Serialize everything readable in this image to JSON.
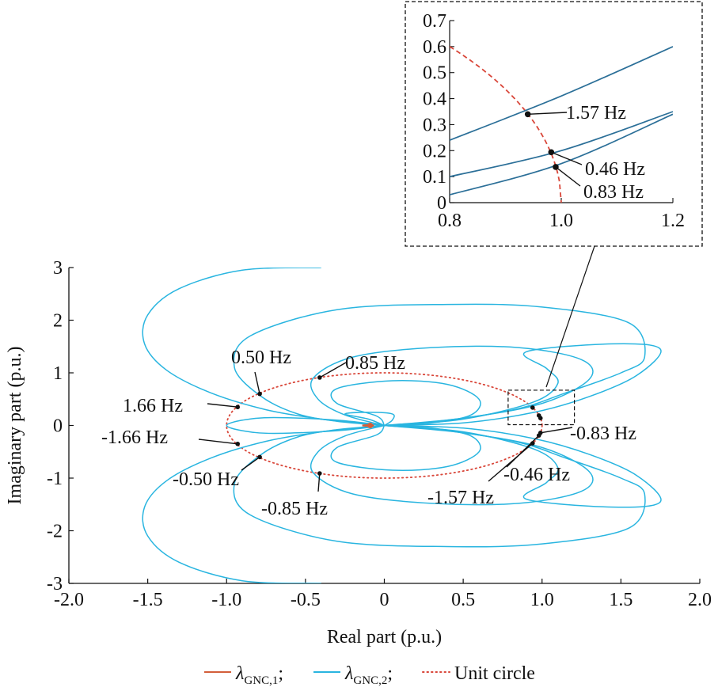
{
  "chart_data": [
    {
      "id": "main",
      "type": "line",
      "xlabel": "Real part (p.u.)",
      "ylabel": "Imaginary part (p.u.)",
      "xlim": [
        -2.0,
        2.0
      ],
      "ylim": [
        -3,
        3
      ],
      "xticks": [
        "-2.0",
        "-1.5",
        "-1.0",
        "-0.5",
        "0",
        "0.5",
        "1.0",
        "1.5",
        "2.0"
      ],
      "yticks": [
        "3",
        "2",
        "1",
        "0",
        "-1",
        "-2",
        "-3"
      ],
      "grid": false,
      "legend_position": "bottom",
      "series": [
        {
          "name": "λGNC,1",
          "color": "#d35f3a",
          "style": "solid",
          "points": [
            [
              -0.14,
              0.0
            ],
            [
              -0.1,
              0.01
            ],
            [
              -0.07,
              0.0
            ],
            [
              -0.1,
              -0.01
            ],
            [
              -0.14,
              0.0
            ]
          ]
        },
        {
          "name": "λGNC,2",
          "color": "#29b5e0",
          "style": "solid",
          "branches": [
            [
              [
                -0.4,
                3.0
              ],
              [
                -0.9,
                2.95
              ],
              [
                -1.3,
                2.6
              ],
              [
                -1.5,
                2.1
              ],
              [
                -1.52,
                1.55
              ],
              [
                -1.38,
                1.05
              ],
              [
                -1.1,
                0.62
              ],
              [
                -0.75,
                0.3
              ],
              [
                -0.4,
                0.12
              ],
              [
                -0.1,
                0.03
              ],
              [
                0.0,
                0.0
              ]
            ],
            [
              [
                -0.4,
                -3.0
              ],
              [
                -0.9,
                -2.95
              ],
              [
                -1.3,
                -2.6
              ],
              [
                -1.5,
                -2.1
              ],
              [
                -1.52,
                -1.55
              ],
              [
                -1.38,
                -1.05
              ],
              [
                -1.1,
                -0.62
              ],
              [
                -0.75,
                -0.3
              ],
              [
                -0.4,
                -0.12
              ],
              [
                -0.1,
                -0.03
              ],
              [
                0.0,
                0.0
              ]
            ],
            [
              [
                0.0,
                0.0
              ],
              [
                0.4,
                0.1
              ],
              [
                0.85,
                0.32
              ],
              [
                1.15,
                0.62
              ],
              [
                1.5,
                1.0
              ],
              [
                1.65,
                1.3
              ],
              [
                1.55,
                1.95
              ],
              [
                1.0,
                2.25
              ],
              [
                0.4,
                2.3
              ],
              [
                -0.3,
                2.2
              ],
              [
                -0.85,
                1.7
              ],
              [
                -0.95,
                1.1
              ],
              [
                -0.78,
                0.55
              ],
              [
                -0.55,
                0.22
              ],
              [
                -0.3,
                0.08
              ],
              [
                0.0,
                0.0
              ]
            ],
            [
              [
                0.0,
                0.0
              ],
              [
                0.4,
                -0.1
              ],
              [
                0.85,
                -0.32
              ],
              [
                1.15,
                -0.62
              ],
              [
                1.5,
                -1.0
              ],
              [
                1.65,
                -1.3
              ],
              [
                1.55,
                -1.95
              ],
              [
                1.0,
                -2.25
              ],
              [
                0.4,
                -2.3
              ],
              [
                -0.3,
                -2.2
              ],
              [
                -0.85,
                -1.7
              ],
              [
                -0.95,
                -1.1
              ],
              [
                -0.78,
                -0.55
              ],
              [
                -0.55,
                -0.22
              ],
              [
                -0.3,
                -0.08
              ],
              [
                0.0,
                0.0
              ]
            ],
            [
              [
                0.0,
                0.0
              ],
              [
                0.5,
                0.14
              ],
              [
                1.0,
                0.42
              ],
              [
                1.3,
                0.88
              ],
              [
                1.25,
                1.25
              ],
              [
                0.85,
                1.48
              ],
              [
                0.3,
                1.48
              ],
              [
                -0.2,
                1.3
              ],
              [
                -0.45,
                0.9
              ],
              [
                -0.42,
                0.5
              ],
              [
                -0.25,
                0.2
              ],
              [
                0.0,
                0.0
              ]
            ],
            [
              [
                0.0,
                0.0
              ],
              [
                0.5,
                -0.14
              ],
              [
                1.0,
                -0.42
              ],
              [
                1.3,
                -0.88
              ],
              [
                1.25,
                -1.25
              ],
              [
                0.85,
                -1.48
              ],
              [
                0.3,
                -1.48
              ],
              [
                -0.2,
                -1.3
              ],
              [
                -0.45,
                -0.9
              ],
              [
                -0.42,
                -0.5
              ],
              [
                -0.25,
                -0.2
              ],
              [
                0.0,
                0.0
              ]
            ],
            [
              [
                0.0,
                0.0
              ],
              [
                0.5,
                0.12
              ],
              [
                0.95,
                0.45
              ],
              [
                1.1,
                0.8
              ],
              [
                1.03,
                1.08
              ],
              [
                0.9,
                1.4
              ],
              [
                1.45,
                1.55
              ],
              [
                1.75,
                1.45
              ],
              [
                1.6,
                0.95
              ],
              [
                1.3,
                0.55
              ],
              [
                0.95,
                0.25
              ],
              [
                0.5,
                0.05
              ],
              [
                0.0,
                0.0
              ]
            ],
            [
              [
                0.0,
                0.0
              ],
              [
                0.5,
                -0.12
              ],
              [
                0.95,
                -0.45
              ],
              [
                1.1,
                -0.8
              ],
              [
                1.03,
                -1.08
              ],
              [
                0.9,
                -1.4
              ],
              [
                1.45,
                -1.55
              ],
              [
                1.75,
                -1.45
              ],
              [
                1.6,
                -0.95
              ],
              [
                1.3,
                -0.55
              ],
              [
                0.95,
                -0.25
              ],
              [
                0.5,
                -0.05
              ],
              [
                0.0,
                0.0
              ]
            ],
            [
              [
                0.0,
                0.0
              ],
              [
                0.3,
                0.05
              ],
              [
                0.55,
                0.2
              ],
              [
                0.6,
                0.5
              ],
              [
                0.4,
                0.78
              ],
              [
                0.05,
                0.85
              ],
              [
                -0.3,
                0.7
              ],
              [
                -0.3,
                0.42
              ],
              [
                -0.05,
                0.18
              ],
              [
                0.0,
                0.0
              ]
            ],
            [
              [
                0.0,
                0.0
              ],
              [
                0.3,
                -0.05
              ],
              [
                0.55,
                -0.2
              ],
              [
                0.6,
                -0.5
              ],
              [
                0.4,
                -0.78
              ],
              [
                0.05,
                -0.85
              ],
              [
                -0.3,
                -0.7
              ],
              [
                -0.3,
                -0.42
              ],
              [
                -0.05,
                -0.18
              ],
              [
                0.0,
                0.0
              ]
            ],
            [
              [
                0.0,
                0.0
              ],
              [
                -0.1,
                0.12
              ],
              [
                -0.25,
                0.22
              ],
              [
                -0.1,
                0.25
              ],
              [
                0.05,
                0.22
              ],
              [
                0.05,
                0.1
              ],
              [
                0.0,
                0.0
              ]
            ],
            [
              [
                0.0,
                0.0
              ],
              [
                -0.3,
                0.1
              ],
              [
                -0.7,
                0.15
              ],
              [
                -0.9,
                0.1
              ],
              [
                -1.0,
                0.0
              ],
              [
                -0.9,
                -0.1
              ],
              [
                -0.7,
                -0.15
              ],
              [
                -0.3,
                -0.1
              ],
              [
                0.0,
                0.0
              ]
            ]
          ]
        },
        {
          "name": "Unit circle",
          "color": "#d9473a",
          "style": "dotted",
          "function": "x^2 + y^2 = 1"
        }
      ],
      "markers": [
        {
          "label": "0.50 Hz",
          "x": -0.79,
          "y": 0.6
        },
        {
          "label": "0.85 Hz",
          "x": -0.41,
          "y": 0.91
        },
        {
          "label": "1.66 Hz",
          "x": -0.93,
          "y": 0.35
        },
        {
          "label": "-1.66 Hz",
          "x": -0.93,
          "y": -0.35
        },
        {
          "label": "-0.50 Hz",
          "x": -0.79,
          "y": -0.6
        },
        {
          "label": "-0.85 Hz",
          "x": -0.41,
          "y": -0.91
        },
        {
          "label": "-0.83 Hz",
          "x": 0.99,
          "y": -0.14
        },
        {
          "label": "-0.46 Hz",
          "x": 0.98,
          "y": -0.19
        },
        {
          "label": "-1.57 Hz",
          "x": 0.94,
          "y": -0.34
        },
        {
          "label": "",
          "x": 0.94,
          "y": 0.34
        },
        {
          "label": "",
          "x": 0.98,
          "y": 0.19
        },
        {
          "label": "",
          "x": 0.99,
          "y": 0.14
        }
      ],
      "zoom_region": {
        "xlim": [
          0.8,
          1.2
        ],
        "ylim": [
          0.0,
          0.7
        ]
      },
      "legend_items": [
        {
          "symbol": "λ",
          "subscript": "GNC,1",
          "suffix": ";",
          "color": "#d35f3a",
          "style": "solid"
        },
        {
          "symbol": "λ",
          "subscript": "GNC,2",
          "suffix": ";",
          "color": "#29b5e0",
          "style": "solid"
        },
        {
          "text": "Unit circle",
          "color": "#d9473a",
          "style": "dotted"
        }
      ]
    },
    {
      "id": "inset",
      "type": "line",
      "xlim": [
        0.8,
        1.2
      ],
      "ylim": [
        0.0,
        0.7
      ],
      "xticks": [
        "0.8",
        "1.0",
        "1.2"
      ],
      "yticks": [
        "0",
        "0.1",
        "0.2",
        "0.3",
        "0.4",
        "0.5",
        "0.6",
        "0.7"
      ],
      "grid": false,
      "series": [
        {
          "name": "λGNC,2",
          "color": "#2b6f98",
          "style": "solid",
          "lines": [
            [
              [
                0.8,
                0.24
              ],
              [
                1.0,
                0.41
              ],
              [
                1.2,
                0.6
              ]
            ],
            [
              [
                0.8,
                0.1
              ],
              [
                1.0,
                0.2
              ],
              [
                1.2,
                0.35
              ]
            ],
            [
              [
                0.8,
                0.03
              ],
              [
                1.0,
                0.15
              ],
              [
                1.2,
                0.34
              ]
            ]
          ]
        },
        {
          "name": "Unit circle",
          "color": "#d9473a",
          "style": "dashed",
          "function": "x^2 + y^2 = 1"
        }
      ],
      "markers": [
        {
          "label": "1.57 Hz",
          "x": 0.94,
          "y": 0.34
        },
        {
          "label": "0.46 Hz",
          "x": 0.982,
          "y": 0.194
        },
        {
          "label": "0.83 Hz",
          "x": 0.99,
          "y": 0.137
        }
      ]
    }
  ]
}
